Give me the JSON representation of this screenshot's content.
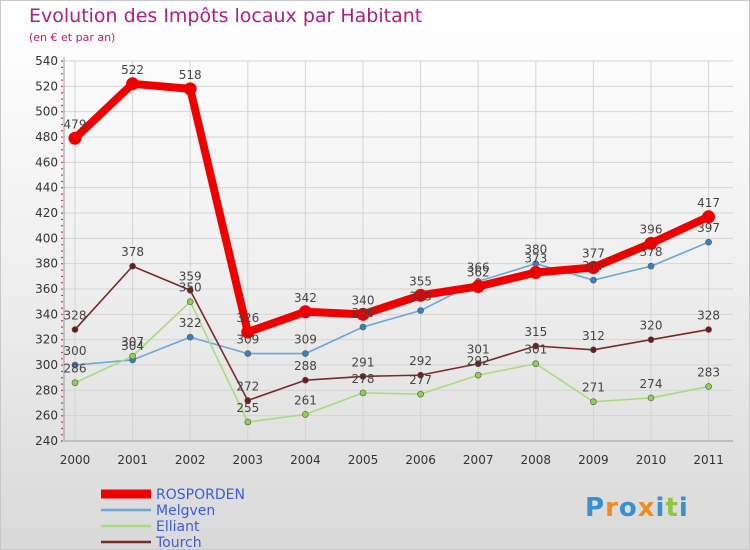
{
  "title": "Evolution des Impôts locaux par Habitant",
  "subtitle": "(en € et par an)",
  "logo": {
    "text": "Proxiti",
    "letters": [
      "P",
      "r",
      "o",
      "x",
      "i",
      "t",
      "i"
    ],
    "colors": [
      "#3a8fd0",
      "#f28c1a",
      "#3a8fd0",
      "#f28c1a",
      "#3a8fd0",
      "#8dc63f",
      "#3a8fd0"
    ]
  },
  "chart_data": {
    "type": "line",
    "title": "Evolution des Impôts locaux par Habitant",
    "subtitle": "(en € et par an)",
    "xlabel": "",
    "ylabel": "",
    "categories": [
      "2000",
      "2001",
      "2002",
      "2003",
      "2004",
      "2005",
      "2006",
      "2007",
      "2008",
      "2009",
      "2010",
      "2011"
    ],
    "ylim": [
      240,
      540
    ],
    "yticks": [
      240,
      260,
      280,
      300,
      320,
      340,
      360,
      380,
      400,
      420,
      440,
      460,
      480,
      500,
      520,
      540
    ],
    "grid": true,
    "legend_position": "bottom-left",
    "series": [
      {
        "name": "ROSPORDEN",
        "color": "#ee0000",
        "marker_color": "#ee0000",
        "bold": true,
        "values": [
          479,
          522,
          518,
          326,
          342,
          340,
          355,
          362,
          373,
          377,
          396,
          417
        ],
        "labels": [
          "479",
          "522",
          "518",
          "326",
          "342",
          "340",
          "355",
          "362",
          "373",
          "377",
          "396",
          "417"
        ]
      },
      {
        "name": "Melgven",
        "color": "#6aa6d8",
        "marker_color": "#3a7fc4",
        "bold": false,
        "values": [
          300,
          304,
          322,
          309,
          309,
          330,
          343,
          366,
          380,
          367,
          378,
          397
        ],
        "labels": [
          "300",
          "304",
          "322",
          "309",
          "309",
          "330",
          "343",
          "366",
          "380",
          "367",
          "378",
          "397"
        ]
      },
      {
        "name": "Elliant",
        "color": "#a9dc7c",
        "marker_color": "#8cd14f",
        "bold": false,
        "values": [
          286,
          307,
          350,
          255,
          261,
          278,
          277,
          292,
          301,
          271,
          274,
          283
        ],
        "labels": [
          "286",
          "307",
          "350",
          "255",
          "261",
          "278",
          "277",
          "292",
          "301",
          "271",
          "274",
          "283"
        ]
      },
      {
        "name": "Tourch",
        "color": "#7a2a2a",
        "marker_color": "#6a1c1c",
        "bold": false,
        "values": [
          328,
          378,
          359,
          272,
          288,
          291,
          292,
          301,
          315,
          312,
          320,
          328
        ],
        "labels": [
          "328",
          "378",
          "359",
          "272",
          "288",
          "291",
          "292",
          "301",
          "315",
          "312",
          "320",
          "328"
        ]
      }
    ]
  }
}
